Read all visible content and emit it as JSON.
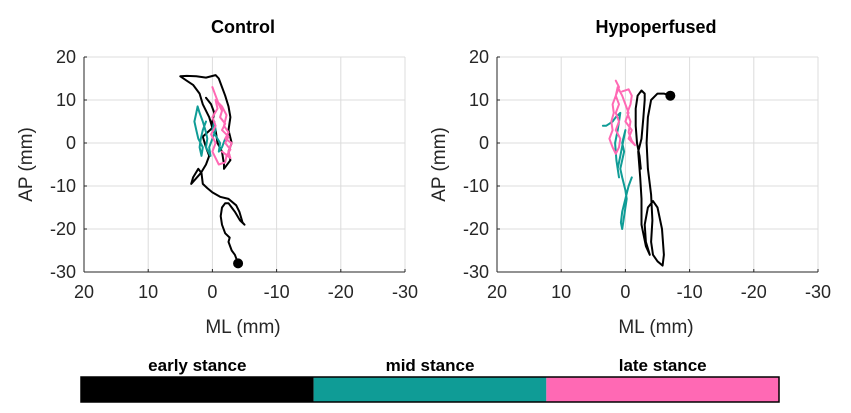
{
  "colors": {
    "early": "#000000",
    "mid": "#0f9c96",
    "late": "#ff69b4",
    "grid": "#dcdcdc",
    "axis": "#262626"
  },
  "chart_data": [
    {
      "type": "line",
      "title": "Control",
      "xlabel": "ML (mm)",
      "ylabel": "AP (mm)",
      "xlim": [
        20,
        -30
      ],
      "ylim": [
        -30,
        20
      ],
      "xticks": [
        20,
        10,
        0,
        -10,
        -20,
        -30
      ],
      "yticks": [
        20,
        10,
        0,
        -10,
        -20,
        -30
      ],
      "grid": true,
      "start_marker": [
        -4,
        -28
      ],
      "series": [
        {
          "name": "early stance",
          "color_key": "early",
          "points": [
            [
              -4,
              -28
            ],
            [
              -3.5,
              -26
            ],
            [
              -3,
              -25
            ],
            [
              -2.5,
              -23
            ],
            [
              -2.7,
              -22
            ],
            [
              -2,
              -21
            ],
            [
              -1.5,
              -19
            ],
            [
              -1.3,
              -17
            ],
            [
              -1.5,
              -15
            ],
            [
              -2,
              -14
            ],
            [
              -2.5,
              -14
            ],
            [
              -3,
              -15
            ],
            [
              -3.5,
              -16
            ],
            [
              -4.3,
              -18
            ],
            [
              -5,
              -19
            ],
            [
              -4.7,
              -18.5
            ],
            [
              -4.2,
              -16
            ],
            [
              -3.7,
              -14.5
            ],
            [
              -2.5,
              -13
            ],
            [
              -1.2,
              -12.5
            ],
            [
              0,
              -11.5
            ],
            [
              0.8,
              -10.5
            ],
            [
              1.5,
              -9.5
            ],
            [
              1.7,
              -7
            ],
            [
              2.2,
              -6
            ],
            [
              3,
              -8
            ],
            [
              3.3,
              -9.5
            ],
            [
              1.8,
              -7
            ],
            [
              1,
              -5
            ],
            [
              0.5,
              -3
            ],
            [
              1,
              -1
            ],
            [
              1.5,
              1.5
            ],
            [
              0,
              3.5
            ],
            [
              0.5,
              6
            ],
            [
              1.5,
              9
            ],
            [
              2,
              11.5
            ],
            [
              3,
              13.5
            ],
            [
              4,
              14.5
            ],
            [
              5,
              15.5
            ],
            [
              4,
              15.6
            ],
            [
              2.5,
              15.5
            ],
            [
              1,
              15.2
            ],
            [
              -0.5,
              15.8
            ],
            [
              -1,
              15
            ],
            [
              -1.5,
              13
            ],
            [
              -2,
              11
            ],
            [
              -2.5,
              8.5
            ],
            [
              -2.8,
              6
            ],
            [
              -2.5,
              3
            ],
            [
              -3,
              0
            ],
            [
              -2.5,
              -2
            ],
            [
              -2.8,
              -4
            ],
            [
              -1.8,
              -6
            ],
            [
              -1.8,
              -5
            ],
            [
              -1.5,
              -2
            ],
            [
              -0.8,
              0
            ],
            [
              -0.5,
              3
            ],
            [
              0,
              5
            ],
            [
              -0.3,
              7
            ],
            [
              0.2,
              9
            ],
            [
              1,
              10.5
            ]
          ]
        },
        {
          "name": "mid stance",
          "color_key": "mid",
          "points": [
            [
              1,
              5
            ],
            [
              1.5,
              3
            ],
            [
              1.8,
              1
            ],
            [
              2,
              -1
            ],
            [
              1.7,
              -3
            ],
            [
              1.5,
              -1
            ],
            [
              2.2,
              1
            ],
            [
              2.5,
              3
            ],
            [
              2.8,
              5
            ],
            [
              2.5,
              7
            ],
            [
              2.3,
              8.5
            ],
            [
              2,
              7
            ],
            [
              1.5,
              5
            ],
            [
              1,
              2.5
            ],
            [
              0.8,
              1
            ],
            [
              1,
              -1
            ],
            [
              0.3,
              -3
            ],
            [
              0.5,
              -1
            ],
            [
              0,
              1
            ],
            [
              -0.5,
              3
            ],
            [
              -0.3,
              5
            ],
            [
              0,
              3
            ],
            [
              -0.8,
              1
            ],
            [
              -1.2,
              0
            ],
            [
              -1,
              -2
            ],
            [
              -1.5,
              -1
            ],
            [
              -2,
              1
            ]
          ]
        },
        {
          "name": "late stance",
          "color_key": "late",
          "points": [
            [
              0,
              13
            ],
            [
              -0.5,
              11
            ],
            [
              -1,
              9
            ],
            [
              -1.5,
              7.5
            ],
            [
              -1.2,
              6
            ],
            [
              -2,
              4.5
            ],
            [
              -1.5,
              3
            ],
            [
              -2.5,
              1.5
            ],
            [
              -2,
              0
            ],
            [
              -2.8,
              -1.5
            ],
            [
              -2.2,
              -3
            ],
            [
              -2,
              -4.5
            ],
            [
              -1,
              -5
            ],
            [
              -0.5,
              -3.5
            ],
            [
              0,
              -2
            ],
            [
              -0.5,
              0
            ],
            [
              0.2,
              2
            ],
            [
              -0.5,
              4
            ],
            [
              0,
              6
            ],
            [
              -0.8,
              8
            ],
            [
              -0.5,
              10
            ],
            [
              -1.5,
              8.5
            ],
            [
              -2.2,
              6.5
            ],
            [
              -1.8,
              4
            ],
            [
              -2.5,
              2.5
            ],
            [
              -2,
              1
            ],
            [
              -3,
              0
            ],
            [
              -2.5,
              -2
            ],
            [
              -2.8,
              -3.5
            ],
            [
              -1.5,
              -2
            ]
          ]
        }
      ]
    },
    {
      "type": "line",
      "title": "Hypoperfused",
      "xlabel": "ML (mm)",
      "ylabel": "AP (mm)",
      "xlim": [
        20,
        -30
      ],
      "ylim": [
        -30,
        20
      ],
      "xticks": [
        20,
        10,
        0,
        -10,
        -20,
        -30
      ],
      "yticks": [
        20,
        10,
        0,
        -10,
        -20,
        -30
      ],
      "grid": true,
      "start_marker": [
        -7,
        11
      ],
      "series": [
        {
          "name": "early stance",
          "color_key": "early",
          "points": [
            [
              -7,
              11
            ],
            [
              -6,
              11.5
            ],
            [
              -5,
              11.5
            ],
            [
              -4,
              10
            ],
            [
              -3.5,
              6
            ],
            [
              -3.3,
              0
            ],
            [
              -3.5,
              -6
            ],
            [
              -4,
              -12
            ],
            [
              -4.2,
              -18
            ],
            [
              -4,
              -23
            ],
            [
              -4.3,
              -26
            ],
            [
              -5,
              -27.5
            ],
            [
              -5.8,
              -28.5
            ],
            [
              -6,
              -26
            ],
            [
              -5.7,
              -20
            ],
            [
              -5,
              -15
            ],
            [
              -4.3,
              -13.5
            ],
            [
              -3.5,
              -15
            ],
            [
              -3,
              -19
            ],
            [
              -3.2,
              -23
            ],
            [
              -3.8,
              -26
            ],
            [
              -3.2,
              -24
            ],
            [
              -2.5,
              -19
            ],
            [
              -2.5,
              -13
            ],
            [
              -2.3,
              -8
            ],
            [
              -2,
              -2
            ],
            [
              -2.5,
              1
            ],
            [
              -2.8,
              6
            ],
            [
              -3,
              10
            ],
            [
              -3,
              11.5
            ],
            [
              -2.5,
              12.2
            ],
            [
              -1.9,
              11
            ],
            [
              -1.6,
              8
            ],
            [
              -1.6,
              4
            ],
            [
              -1.8,
              0
            ],
            [
              -2.2,
              -3
            ],
            [
              -2.4,
              -6
            ]
          ]
        },
        {
          "name": "mid stance",
          "color_key": "mid",
          "points": [
            [
              -1,
              -8
            ],
            [
              -0.5,
              -10
            ],
            [
              0,
              -13
            ],
            [
              0.5,
              -16
            ],
            [
              0.7,
              -18.5
            ],
            [
              0.5,
              -20
            ],
            [
              0.3,
              -18
            ],
            [
              0,
              -15
            ],
            [
              -0.2,
              -13
            ],
            [
              0,
              -11
            ],
            [
              0.5,
              -8
            ],
            [
              0.8,
              -6
            ],
            [
              0.5,
              -4
            ],
            [
              0.2,
              -2
            ],
            [
              0.5,
              0
            ],
            [
              0,
              3
            ],
            [
              0.8,
              -3
            ],
            [
              1.2,
              -6
            ],
            [
              1,
              -8
            ],
            [
              1.4,
              -4
            ],
            [
              1.6,
              0
            ],
            [
              1.2,
              3
            ],
            [
              1,
              5
            ],
            [
              0.8,
              7
            ],
            [
              1.5,
              6
            ],
            [
              2,
              5
            ],
            [
              2.5,
              4.5
            ],
            [
              3,
              4
            ],
            [
              3.5,
              4
            ]
          ]
        },
        {
          "name": "late stance",
          "color_key": "late",
          "points": [
            [
              1.5,
              14.5
            ],
            [
              1,
              13
            ],
            [
              1.5,
              11
            ],
            [
              1,
              9
            ],
            [
              1.5,
              7
            ],
            [
              1,
              5
            ],
            [
              1.5,
              3
            ],
            [
              0.8,
              1
            ],
            [
              1,
              -1
            ],
            [
              1.5,
              -2.5
            ],
            [
              2,
              -1
            ],
            [
              2.5,
              1
            ],
            [
              2,
              3
            ],
            [
              2.2,
              5
            ],
            [
              1.8,
              7
            ],
            [
              2,
              9
            ],
            [
              1.5,
              11
            ],
            [
              1.2,
              13
            ],
            [
              0.5,
              11
            ],
            [
              0,
              9
            ],
            [
              -0.5,
              7
            ],
            [
              0,
              5
            ],
            [
              -1,
              3
            ],
            [
              -0.5,
              1
            ],
            [
              -1.5,
              -0.5
            ],
            [
              -1,
              0.5
            ],
            [
              -0.5,
              2.5
            ],
            [
              -0.8,
              5
            ],
            [
              -0.3,
              7
            ],
            [
              -0.8,
              9
            ],
            [
              -1,
              11
            ],
            [
              -0.5,
              12.5
            ],
            [
              0.5,
              12
            ]
          ]
        }
      ]
    }
  ],
  "legend": {
    "segments": [
      {
        "label": "early stance",
        "color_key": "early"
      },
      {
        "label": "mid stance",
        "color_key": "mid"
      },
      {
        "label": "late stance",
        "color_key": "late"
      }
    ]
  }
}
